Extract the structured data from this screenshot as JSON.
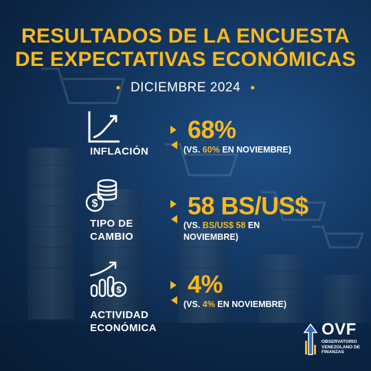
{
  "header": {
    "title_line1": "RESULTADOS DE LA ENCUESTA",
    "title_line2": "DE EXPECTATIVAS ECONÓMICAS",
    "date": "DICIEMBRE 2024",
    "accent_color": "#f7b81d"
  },
  "indicators": [
    {
      "icon": "growth-chart-icon",
      "label_line1": "INFLACIÓN",
      "label_line2": "",
      "value": "68%",
      "note_prefix": "(VS.",
      "note_highlight": "60%",
      "note_suffix": "EN NOVIEMBRE)",
      "note_line2": ""
    },
    {
      "icon": "coins-dollar-icon",
      "label_line1": "TIPO DE",
      "label_line2": "CAMBIO",
      "value": "58 BS/US$",
      "note_prefix": "(VS.",
      "note_highlight": "BS/US$ 58",
      "note_suffix": "EN",
      "note_line2": "NOVIEMBRE)"
    },
    {
      "icon": "economic-activity-icon",
      "label_line1": "ACTIVIDAD",
      "label_line2": "ECONÓMICA",
      "value": "4%",
      "note_prefix": "(VS.",
      "note_highlight": "4%",
      "note_suffix": "EN NOVIEMBRE)",
      "note_line2": ""
    }
  ],
  "logo": {
    "name": "OVF",
    "line1": "OBSERVATORIO",
    "line2": "VENEZOLANO DE",
    "line3": "FINANZAS"
  }
}
